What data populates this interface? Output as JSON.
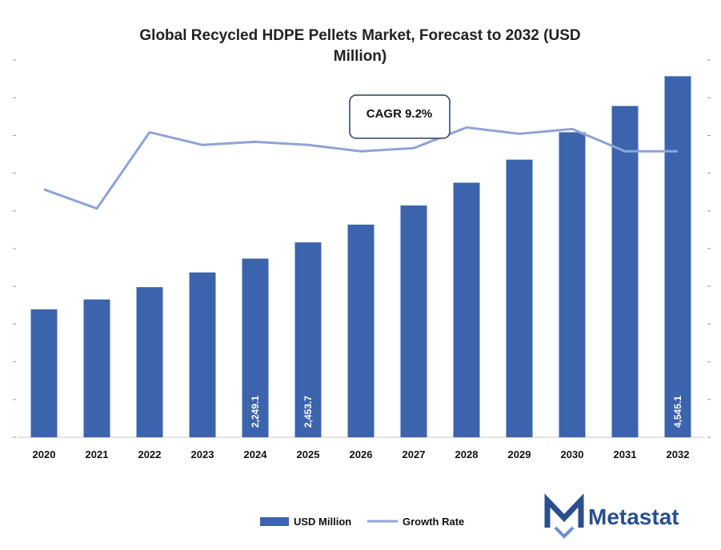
{
  "chart_data": {
    "type": "bar",
    "title_lines": [
      "Global Recycled HDPE Pellets Market, Forecast to 2032 (USD",
      "Million)"
    ],
    "categories": [
      "2020",
      "2021",
      "2022",
      "2023",
      "2024",
      "2025",
      "2026",
      "2027",
      "2028",
      "2029",
      "2030",
      "2031",
      "2032"
    ],
    "series": [
      {
        "name": "USD Million",
        "kind": "bar",
        "color": "#3c64ad",
        "values": [
          1610,
          1735,
          1890,
          2075,
          2249.1,
          2453.7,
          2677,
          2918,
          3205,
          3495,
          3840,
          4170,
          4545.1
        ]
      },
      {
        "name": "Growth Rate",
        "kind": "line",
        "color": "#8fa3d9",
        "values": [
          7.8,
          7.2,
          9.6,
          9.2,
          9.3,
          9.2,
          9.0,
          9.1,
          9.75,
          9.55,
          9.7,
          9.0,
          9.0
        ]
      }
    ],
    "data_labels": [
      {
        "index": 4,
        "text": "2,249.1"
      },
      {
        "index": 5,
        "text": "2,453.7"
      },
      {
        "index": 12,
        "text": "4,545.1"
      }
    ],
    "annotation": {
      "text": "CAGR 9.2%"
    },
    "ylim": [
      0,
      4800
    ],
    "growth_ylim": [
      0,
      12
    ],
    "legend_position": "bottom",
    "grid": false
  },
  "brand": {
    "logo_text": "Metastat",
    "accent": "#2a4f8f",
    "logo_icon": "m-logo-icon"
  }
}
